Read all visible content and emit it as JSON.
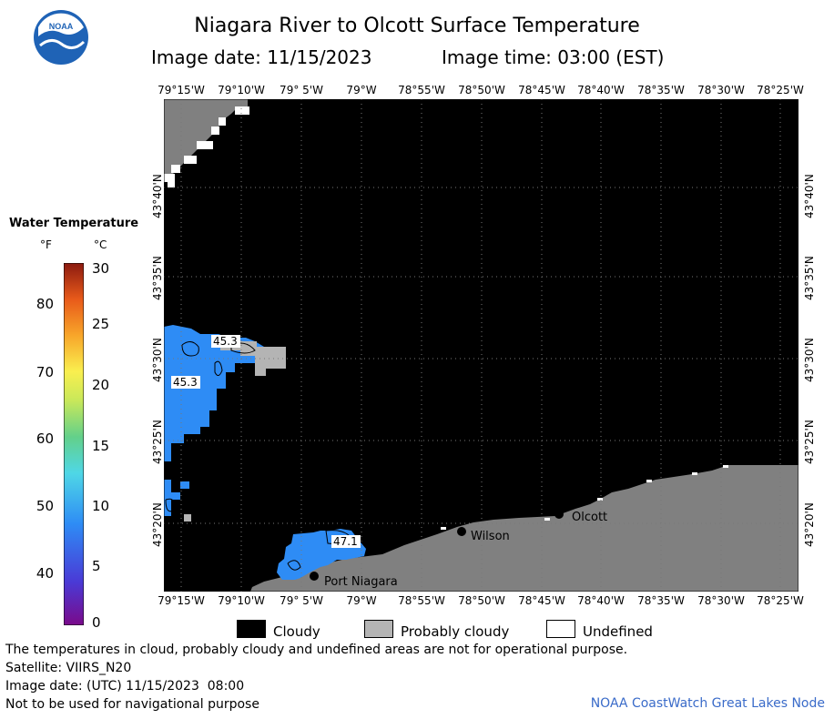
{
  "header": {
    "logo_text": "NOAA",
    "title": "Niagara River to Olcott Surface Temperature",
    "image_date": "Image date: 11/15/2023",
    "image_time": "Image time: 03:00 (EST)"
  },
  "map": {
    "lon_labels": [
      "79°15'W",
      "79°10'W",
      "79° 5'W",
      "79°W",
      "78°55'W",
      "78°50'W",
      "78°45'W",
      "78°40'W",
      "78°35'W",
      "78°30'W",
      "78°25'W"
    ],
    "lat_labels": [
      "43°40'N",
      "43°35'N",
      "43°30'N",
      "43°25'N",
      "43°20'N"
    ],
    "places": [
      {
        "name": "Olcott"
      },
      {
        "name": "Wilson"
      },
      {
        "name": "Port Niagara"
      }
    ],
    "temperature_labels": [
      "45.3",
      "45.3",
      "47.1"
    ],
    "colors": {
      "cloudy": "#000000",
      "probably_cloudy": "#b4b4b4",
      "undefined": "#ffffff",
      "land": "#808080",
      "water_temp": "#2e8cf5"
    }
  },
  "legend": {
    "title": "Water Temperature",
    "unit_f": "°F",
    "unit_c": "°C",
    "f_ticks": [
      "80",
      "70",
      "60",
      "50",
      "40"
    ],
    "c_ticks": [
      "30",
      "25",
      "20",
      "15",
      "10",
      "5",
      "0"
    ]
  },
  "key": {
    "cloudy": "Cloudy",
    "probably_cloudy": "Probably cloudy",
    "undefined": "Undefined"
  },
  "footer": {
    "note": "The temperatures in cloud, probably cloudy and undefined areas are not for operational purpose.",
    "satellite": "Satellite: VIIRS_N20",
    "utc_date": "Image date: (UTC) 11/15/2023  08:00",
    "nav": "Not to be used for navigational purpose",
    "credit": "NOAA CoastWatch Great Lakes Node"
  }
}
